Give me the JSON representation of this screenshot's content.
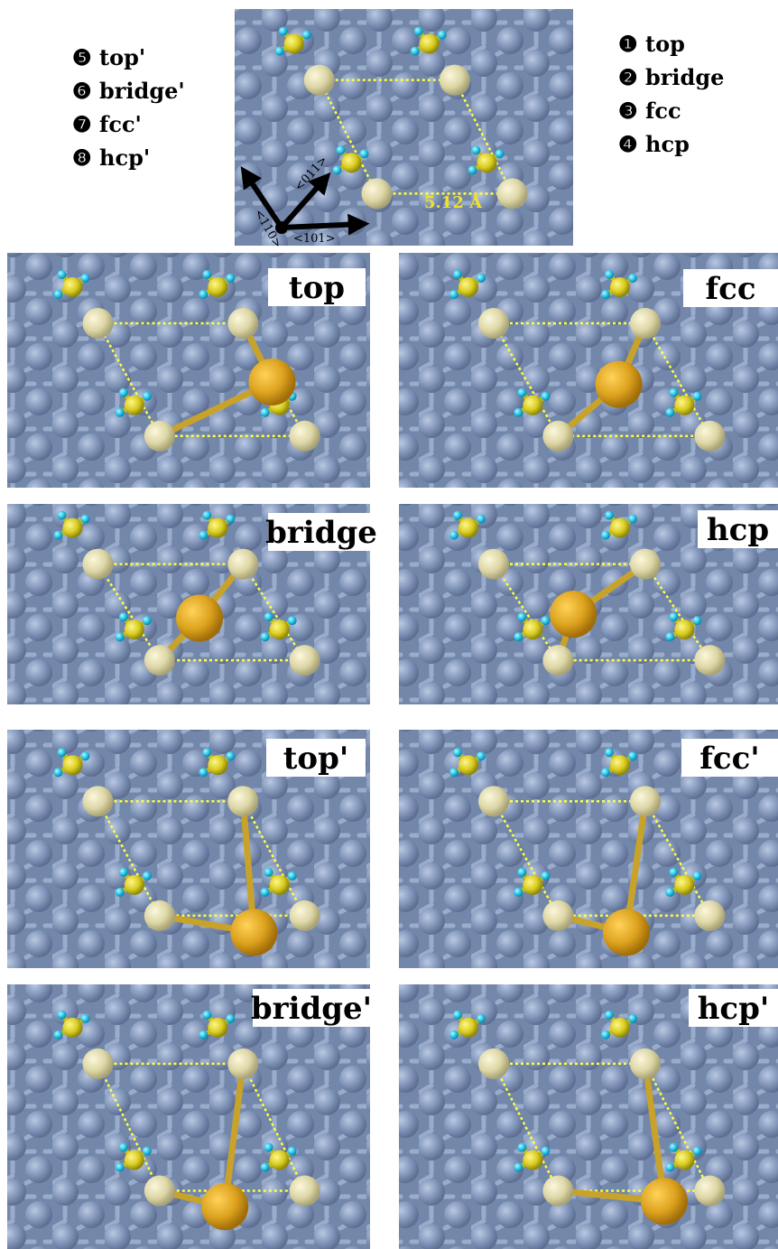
{
  "top_figure": {
    "directions": [
      "<011>",
      "<110>",
      "<101>"
    ],
    "distance": "5.12 Å"
  },
  "legend_left": [
    {
      "marker": "❺",
      "label": "top'"
    },
    {
      "marker": "❻",
      "label": "bridge'"
    },
    {
      "marker": "❼",
      "label": "fcc'"
    },
    {
      "marker": "❽",
      "label": "hcp'"
    }
  ],
  "legend_right": [
    {
      "marker": "❶",
      "label": "top"
    },
    {
      "marker": "❷",
      "label": "bridge"
    },
    {
      "marker": "❸",
      "label": "fcc"
    },
    {
      "marker": "❹",
      "label": "hcp"
    }
  ],
  "panels": [
    {
      "label": "top"
    },
    {
      "label": "fcc"
    },
    {
      "label": "bridge"
    },
    {
      "label": "hcp"
    },
    {
      "label": "top'"
    },
    {
      "label": "fcc'"
    },
    {
      "label": "bridge'"
    },
    {
      "label": "hcp'"
    }
  ]
}
